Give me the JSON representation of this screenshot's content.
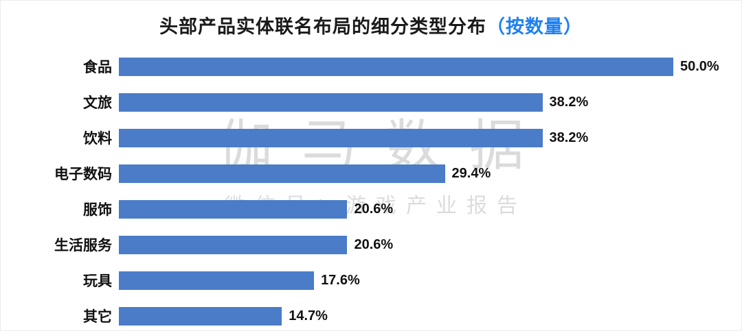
{
  "title": {
    "main": "头部产品实体联名布局的细分类型分布",
    "highlight": "（按数量）"
  },
  "watermark": {
    "line1": "伽马数据",
    "line2": "微信号：游戏产业报告"
  },
  "colors": {
    "bar": "#4a7cc8",
    "title_highlight": "#1e80f0",
    "text": "#111111",
    "watermark": "#dcdcdc"
  },
  "chart_data": {
    "type": "bar",
    "orientation": "horizontal",
    "title": "头部产品实体联名布局的细分类型分布（按数量）",
    "xlabel": "",
    "ylabel": "",
    "xlim": [
      0,
      50
    ],
    "grid": false,
    "legend": "none",
    "categories": [
      "食品",
      "文旅",
      "饮料",
      "电子数码",
      "服饰",
      "生活服务",
      "玩具",
      "其它"
    ],
    "values": [
      50.0,
      38.2,
      38.2,
      29.4,
      20.6,
      20.6,
      17.6,
      14.7
    ],
    "value_labels": [
      "50.0%",
      "38.2%",
      "38.2%",
      "29.4%",
      "20.6%",
      "20.6%",
      "17.6%",
      "14.7%"
    ]
  }
}
